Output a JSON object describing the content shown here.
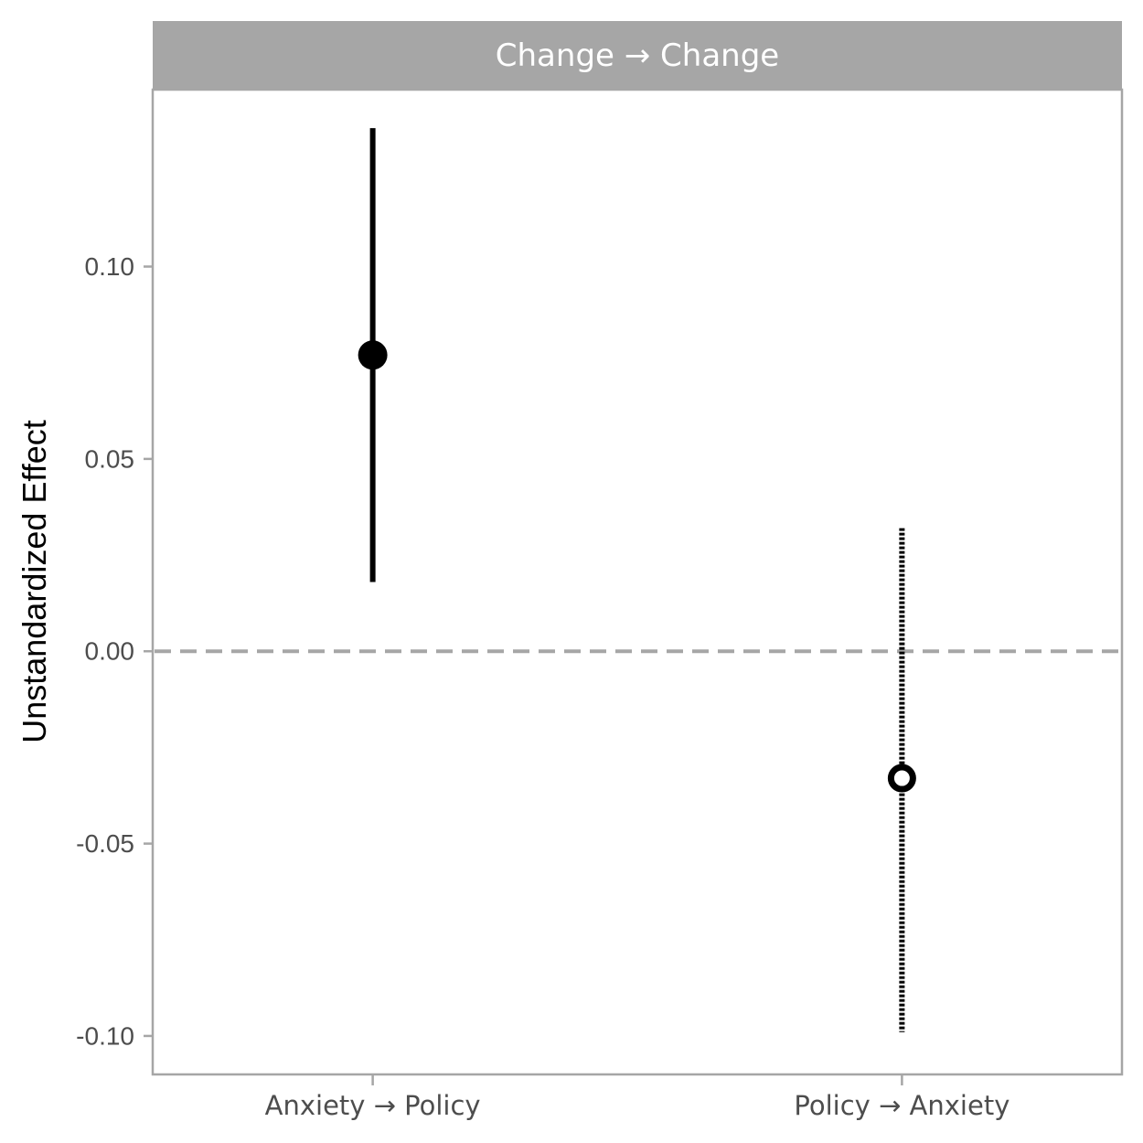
{
  "chart_data": {
    "type": "scatter",
    "panel_title": "Change → Change",
    "xlabel": "",
    "ylabel": "Unstandardized Effect",
    "categories": [
      "Anxiety → Policy",
      "Policy → Anxiety"
    ],
    "points": [
      {
        "category": "Anxiety → Policy",
        "estimate": 0.077,
        "lower": 0.018,
        "upper": 0.136,
        "marker": "filled",
        "line": "solid"
      },
      {
        "category": "Policy → Anxiety",
        "estimate": -0.033,
        "lower": -0.099,
        "upper": 0.032,
        "marker": "open",
        "line": "dotted"
      }
    ],
    "ylim": [
      -0.11,
      0.146
    ],
    "yticks": [
      0.1,
      0.05,
      0.0,
      -0.05,
      -0.1
    ],
    "ytick_labels": [
      "0.10",
      "0.05",
      "0.00",
      "-0.05",
      "-0.10"
    ],
    "reference_line": {
      "y": 0,
      "style": "dashed",
      "color": "#a6a6a6"
    },
    "grid": false,
    "legend": "none",
    "colors": {
      "strip_bg": "#a6a6a6",
      "panel_border": "#a6a6a6",
      "mark": "#000000"
    }
  }
}
